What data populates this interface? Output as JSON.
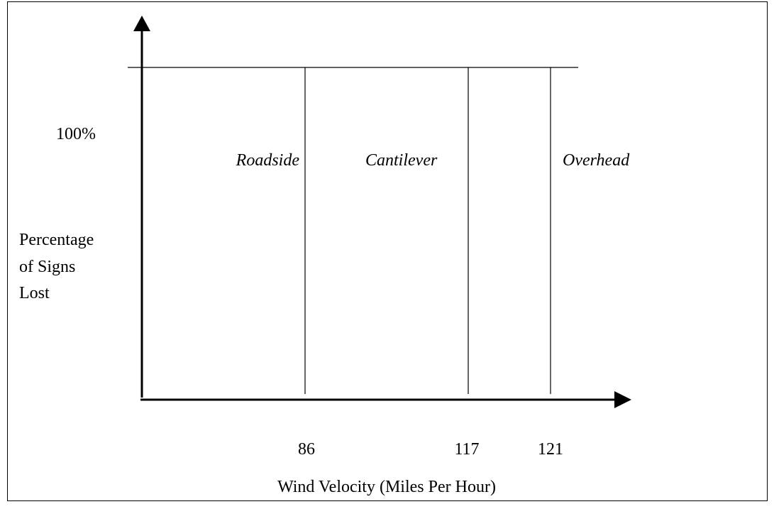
{
  "y_axis": {
    "tick": "100%",
    "label_lines": [
      "Percentage",
      "of Signs",
      "Lost"
    ]
  },
  "x_axis": {
    "ticks": [
      "86",
      "117",
      "121"
    ],
    "label": "Wind Velocity (Miles Per Hour)"
  },
  "regions": [
    "Roadside",
    "Cantilever",
    "Overhead"
  ]
}
